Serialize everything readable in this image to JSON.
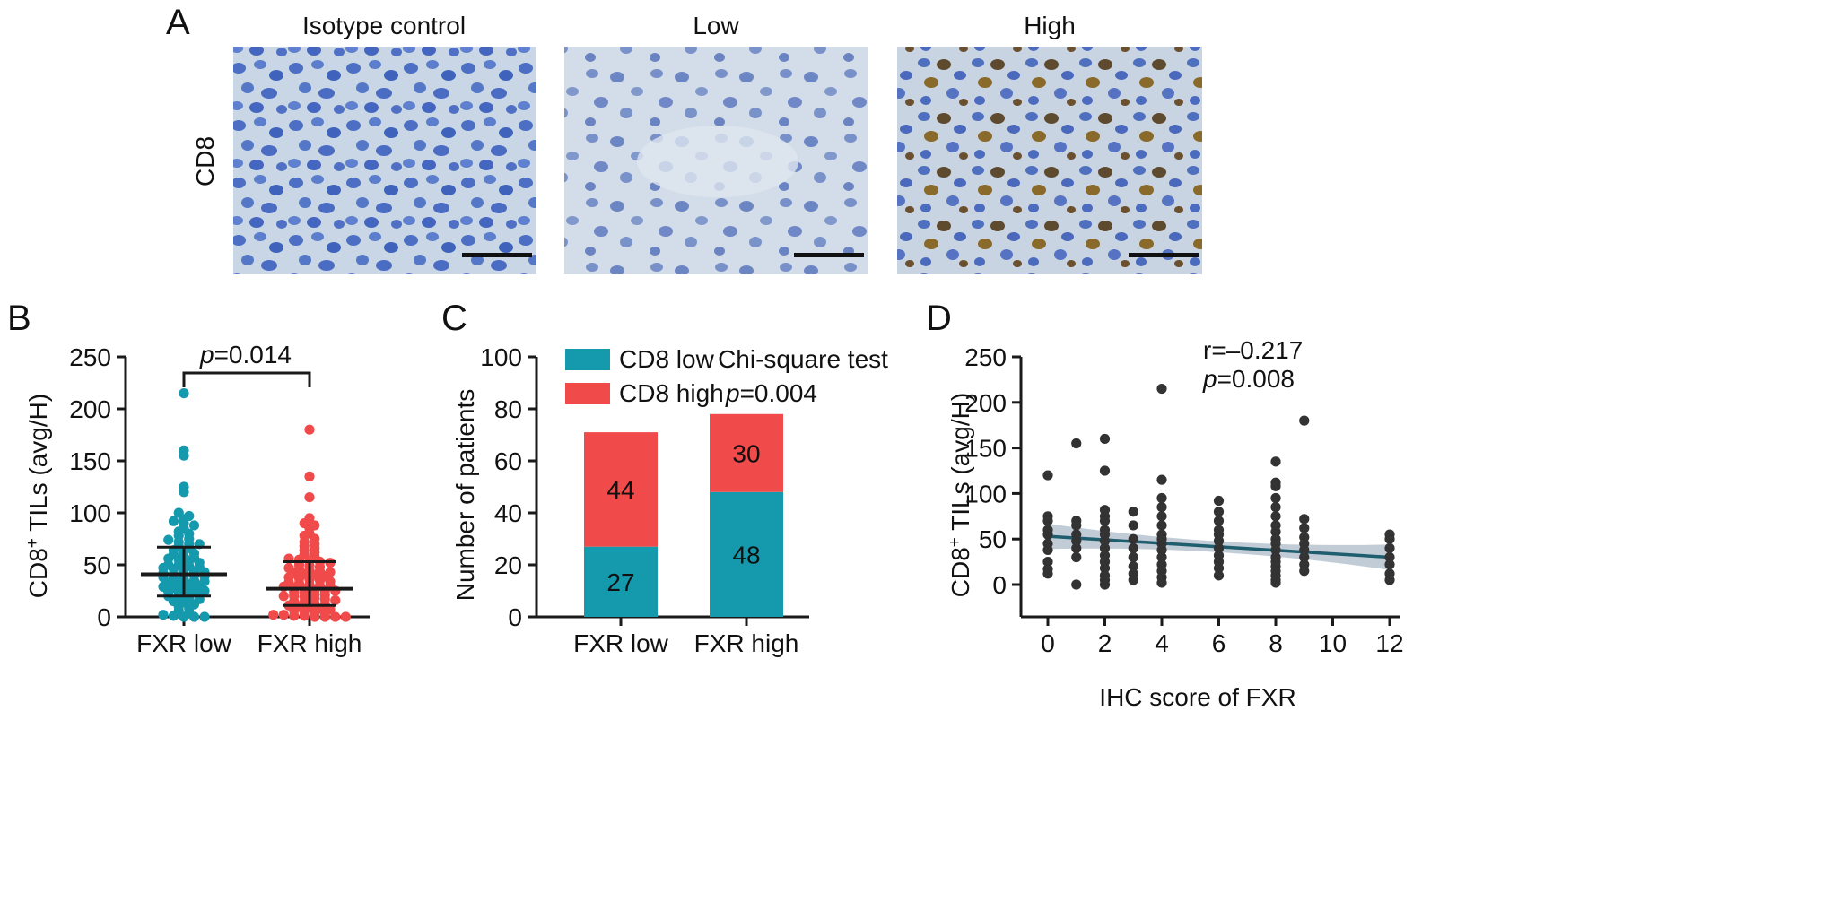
{
  "colors": {
    "teal": "#1599ad",
    "red": "#f04a4a",
    "black": "#1a1a1a",
    "micro_bg": "#c7d3e3",
    "micro_nucleus": "#4a6cc2",
    "micro_stain": "#8a6a2a",
    "band": "#a8b7c4",
    "fit_line": "#1f5e6e"
  },
  "panelA": {
    "letter": "A",
    "row_label": "CD8",
    "columns": [
      "Isotype control",
      "Low",
      "High"
    ]
  },
  "chart_data": [
    {
      "id": "B",
      "type": "scatter",
      "letter": "B",
      "title": "",
      "xlabel": "",
      "ylabel": "CD8+ TILs (avg/H)",
      "ylabel_parts": {
        "pre": "CD8",
        "sup": "+",
        "post": " TILs (avg/H)"
      },
      "categories": [
        "FXR low",
        "FXR high"
      ],
      "ylim": [
        0,
        250
      ],
      "yticks": [
        0,
        50,
        100,
        150,
        200,
        250
      ],
      "annotation": {
        "p_label": "p",
        "p_value": "=0.014"
      },
      "series": [
        {
          "category": "FXR low",
          "color": "#1599ad",
          "median": 41,
          "q1": 20,
          "q3": 67,
          "values": [
            215,
            160,
            155,
            125,
            120,
            100,
            97,
            94,
            92,
            90,
            88,
            85,
            82,
            80,
            78,
            75,
            74,
            72,
            70,
            70,
            68,
            66,
            64,
            63,
            61,
            60,
            58,
            57,
            56,
            55,
            54,
            52,
            50,
            50,
            49,
            48,
            47,
            46,
            45,
            44,
            43,
            42,
            41,
            40,
            40,
            39,
            38,
            37,
            36,
            35,
            34,
            33,
            32,
            31,
            30,
            29,
            28,
            27,
            26,
            25,
            24,
            23,
            22,
            21,
            20,
            19,
            18,
            17,
            15,
            14,
            12,
            10,
            8,
            6,
            4,
            2,
            1,
            0,
            0,
            0
          ]
        },
        {
          "category": "FXR high",
          "color": "#f04a4a",
          "median": 27,
          "q1": 11,
          "q3": 53,
          "values": [
            180,
            135,
            115,
            95,
            90,
            88,
            85,
            80,
            78,
            75,
            72,
            70,
            68,
            66,
            64,
            62,
            60,
            58,
            56,
            55,
            54,
            53,
            52,
            50,
            49,
            48,
            47,
            46,
            45,
            44,
            43,
            42,
            41,
            40,
            39,
            38,
            37,
            36,
            35,
            34,
            33,
            32,
            31,
            30,
            30,
            29,
            28,
            27,
            26,
            25,
            25,
            24,
            23,
            22,
            21,
            20,
            20,
            19,
            18,
            17,
            16,
            15,
            14,
            13,
            12,
            11,
            10,
            9,
            8,
            7,
            6,
            5,
            4,
            3,
            2,
            2,
            1,
            1,
            0,
            0,
            0,
            0
          ]
        }
      ]
    },
    {
      "id": "C",
      "type": "bar",
      "letter": "C",
      "title": "",
      "xlabel": "",
      "ylabel": "Number of patients",
      "categories": [
        "FXR low",
        "FXR high"
      ],
      "ylim": [
        0,
        100
      ],
      "yticks": [
        0,
        20,
        40,
        60,
        80,
        100
      ],
      "stacked": true,
      "series": [
        {
          "name": "CD8 low",
          "color": "#1599ad",
          "values": [
            27,
            48
          ]
        },
        {
          "name": "CD8 high",
          "color": "#f04a4a",
          "values": [
            44,
            30
          ]
        }
      ],
      "legend": {
        "items": [
          "CD8 low",
          "CD8 high"
        ],
        "position": "top-left"
      },
      "annotation": {
        "test": "Chi-square test",
        "p_label": "p",
        "p_value": "=0.004"
      }
    },
    {
      "id": "D",
      "type": "scatter",
      "letter": "D",
      "title": "",
      "xlabel": "IHC score of FXR",
      "ylabel": "CD8+ TILs (avg/H)",
      "ylabel_parts": {
        "pre": "CD8",
        "sup": "+",
        "post": " TILs (avg/H)"
      },
      "xlim": [
        -0.5,
        12.5
      ],
      "ylim": [
        0,
        250
      ],
      "xticks": [
        0,
        2,
        4,
        6,
        8,
        10,
        12
      ],
      "yticks": [
        0,
        50,
        100,
        150,
        200,
        250
      ],
      "annotation": {
        "r_text": "r=–0.217",
        "p_label": "p",
        "p_value": "=0.008"
      },
      "fit": {
        "x0": 0,
        "y0": 53,
        "x1": 12,
        "y1": 30,
        "band_halfwidth_ends": 14,
        "band_halfwidth_mid": 6
      },
      "points": [
        [
          0,
          120
        ],
        [
          0,
          75
        ],
        [
          0,
          70
        ],
        [
          0,
          60
        ],
        [
          0,
          55
        ],
        [
          0,
          45
        ],
        [
          0,
          38
        ],
        [
          0,
          25
        ],
        [
          0,
          17
        ],
        [
          0,
          12
        ],
        [
          1,
          155
        ],
        [
          1,
          70
        ],
        [
          1,
          65
        ],
        [
          1,
          55
        ],
        [
          1,
          48
        ],
        [
          1,
          40
        ],
        [
          1,
          30
        ],
        [
          1,
          0
        ],
        [
          2,
          160
        ],
        [
          2,
          125
        ],
        [
          2,
          82
        ],
        [
          2,
          75
        ],
        [
          2,
          70
        ],
        [
          2,
          60
        ],
        [
          2,
          55
        ],
        [
          2,
          48
        ],
        [
          2,
          40
        ],
        [
          2,
          32
        ],
        [
          2,
          25
        ],
        [
          2,
          18
        ],
        [
          2,
          10
        ],
        [
          2,
          5
        ],
        [
          2,
          0
        ],
        [
          3,
          80
        ],
        [
          3,
          65
        ],
        [
          3,
          50
        ],
        [
          3,
          40
        ],
        [
          3,
          30
        ],
        [
          3,
          20
        ],
        [
          3,
          12
        ],
        [
          3,
          5
        ],
        [
          4,
          215
        ],
        [
          4,
          115
        ],
        [
          4,
          95
        ],
        [
          4,
          85
        ],
        [
          4,
          75
        ],
        [
          4,
          65
        ],
        [
          4,
          55
        ],
        [
          4,
          50
        ],
        [
          4,
          45
        ],
        [
          4,
          38
        ],
        [
          4,
          30
        ],
        [
          4,
          22
        ],
        [
          4,
          15
        ],
        [
          4,
          8
        ],
        [
          4,
          2
        ],
        [
          6,
          92
        ],
        [
          6,
          80
        ],
        [
          6,
          70
        ],
        [
          6,
          60
        ],
        [
          6,
          55
        ],
        [
          6,
          48
        ],
        [
          6,
          40
        ],
        [
          6,
          32
        ],
        [
          6,
          25
        ],
        [
          6,
          18
        ],
        [
          6,
          10
        ],
        [
          8,
          135
        ],
        [
          8,
          112
        ],
        [
          8,
          108
        ],
        [
          8,
          95
        ],
        [
          8,
          85
        ],
        [
          8,
          75
        ],
        [
          8,
          65
        ],
        [
          8,
          58
        ],
        [
          8,
          50
        ],
        [
          8,
          45
        ],
        [
          8,
          38
        ],
        [
          8,
          30
        ],
        [
          8,
          25
        ],
        [
          8,
          20
        ],
        [
          8,
          15
        ],
        [
          8,
          10
        ],
        [
          8,
          5
        ],
        [
          8,
          2
        ],
        [
          9,
          180
        ],
        [
          9,
          72
        ],
        [
          9,
          62
        ],
        [
          9,
          52
        ],
        [
          9,
          45
        ],
        [
          9,
          38
        ],
        [
          9,
          30
        ],
        [
          9,
          22
        ],
        [
          9,
          15
        ],
        [
          12,
          55
        ],
        [
          12,
          50
        ],
        [
          12,
          40
        ],
        [
          12,
          30
        ],
        [
          12,
          22
        ],
        [
          12,
          12
        ],
        [
          12,
          5
        ]
      ]
    }
  ]
}
